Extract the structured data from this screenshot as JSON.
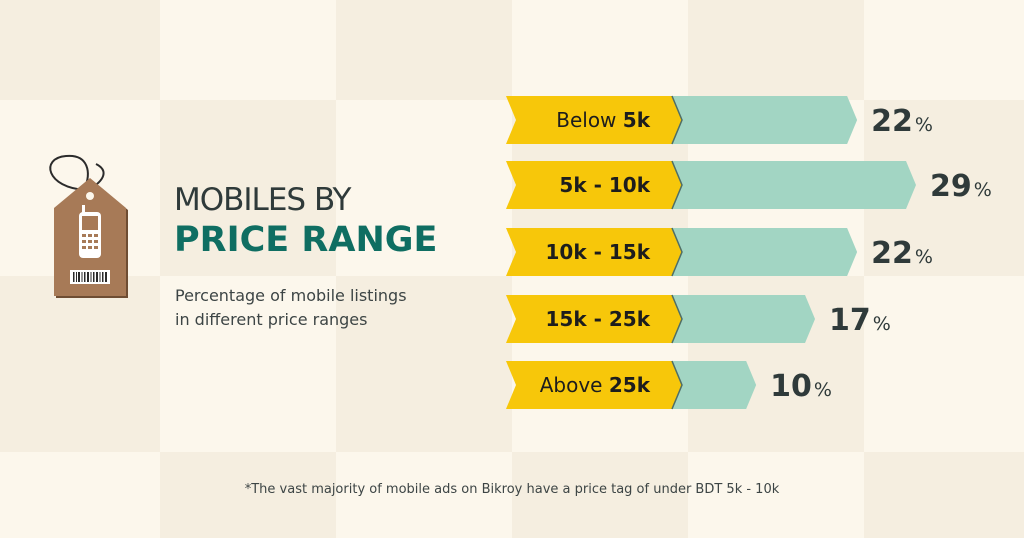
{
  "title_line1": "MOBILES BY",
  "title_line2": "PRICE RANGE",
  "subtitle_line1": "Percentage of mobile listings",
  "subtitle_line2": "in different price ranges",
  "footnote": "*The vast majority of mobile ads on Bikroy have a price tag of under BDT 5k - 10k",
  "tag_icon": "price-tag-with-phone-and-barcode-icon",
  "colors": {
    "label_arrow": "#f7c70a",
    "bar": "#a2d5c3",
    "value_text": "#2f3a3a",
    "title_accent": "#0f6e62",
    "tag": "#a77a57"
  },
  "chart_data": {
    "type": "bar",
    "orientation": "horizontal",
    "categories": [
      {
        "label_plain": "Below ",
        "label_bold": "5k"
      },
      {
        "label_plain": "",
        "label_bold": "5k - 10k"
      },
      {
        "label_plain": "",
        "label_bold": "10k - 15k"
      },
      {
        "label_plain": "",
        "label_bold": "15k - 25k"
      },
      {
        "label_plain": "Above ",
        "label_bold": "25k"
      }
    ],
    "values": [
      22,
      29,
      22,
      17,
      10
    ],
    "value_labels": [
      {
        "num": "22",
        "unit": "%"
      },
      {
        "num": "29",
        "unit": "%"
      },
      {
        "num": "22",
        "unit": "%"
      },
      {
        "num": "17",
        "unit": "%"
      },
      {
        "num": "10",
        "unit": "%"
      }
    ],
    "xlim": [
      0,
      29
    ]
  }
}
